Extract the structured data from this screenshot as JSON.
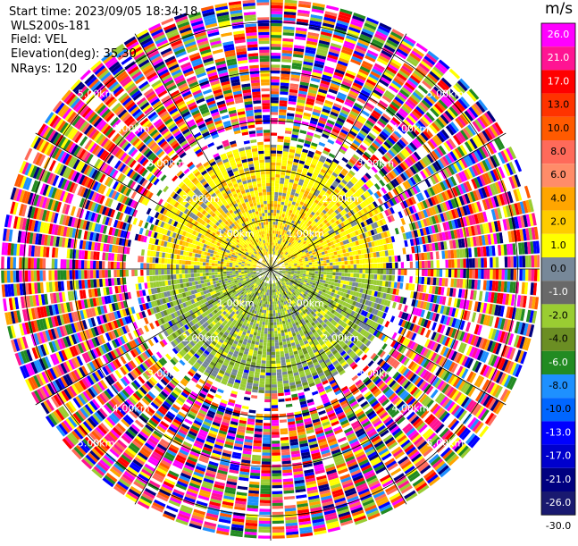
{
  "info": {
    "start_time": "Start time: 2023/09/05 18:34:18",
    "site": "WLS200s-181",
    "field": "Field: VEL",
    "elevation": "Elevation(deg): 35.30",
    "nrays": "NRays: 120"
  },
  "chart_data": {
    "type": "heatmap",
    "projection": "polar-ppi",
    "field": "VEL",
    "nrays": 120,
    "range_rings_km": [
      1,
      2,
      3,
      4,
      5
    ],
    "range_labels": [
      "1.00km",
      "2.00km",
      "3.00km",
      "4.00km",
      "5.00km"
    ],
    "max_range_km": 5.5,
    "grid": true,
    "colorbar": {
      "unit": "m/s",
      "ticks": [
        "26.0",
        "21.0",
        "17.0",
        "13.0",
        "10.0",
        "8.0",
        "6.0",
        "4.0",
        "2.0",
        "1.0",
        "0.0",
        "-1.0",
        "-2.0",
        "-4.0",
        "-6.0",
        "-8.0",
        "-10.0",
        "-13.0",
        "-17.0",
        "-21.0",
        "-26.0",
        "-30.0"
      ],
      "colors": [
        "#ff00ff",
        "#ff1493",
        "#ff0000",
        "#ff3300",
        "#ff5a00",
        "#ff6a5a",
        "#ff8c69",
        "#ffa500",
        "#ffcc00",
        "#ffff00",
        "#778899",
        "#696969",
        "#9acd32",
        "#6b8e23",
        "#228b22",
        "#1e90ff",
        "#0066ff",
        "#0000ff",
        "#0000cd",
        "#000080",
        "#191970",
        "#ffffff"
      ]
    }
  }
}
